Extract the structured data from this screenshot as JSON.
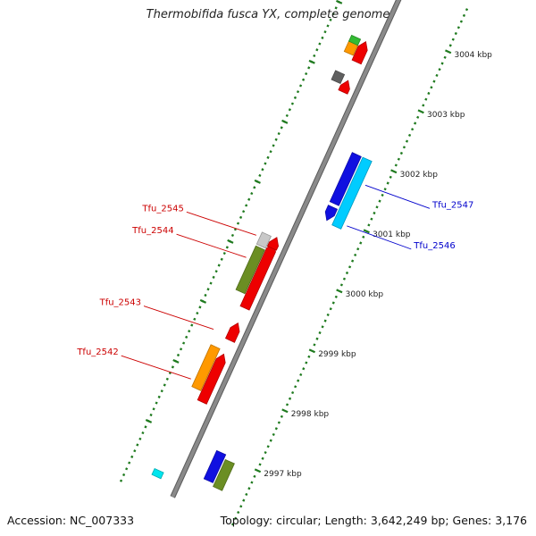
{
  "title": "Thermobifida fusca YX, complete genome",
  "footer": {
    "accession": "Accession: NC_007333",
    "summary": "Topology: circular; Length: 3,642,249 bp; Genes: 3,176"
  },
  "colors": {
    "backbone": "#8a8a8a",
    "tick_major": "#1f7a1f",
    "tick_minor": "#1f7a1f",
    "label_minus": "#cc0000",
    "label_plus": "#0000cc"
  },
  "ticks": [
    {
      "pos": 2997,
      "label": "2997 kbp"
    },
    {
      "pos": 2998,
      "label": "2998 kbp"
    },
    {
      "pos": 2999,
      "label": "2999 kbp"
    },
    {
      "pos": 3000,
      "label": "3000 kbp"
    },
    {
      "pos": 3001,
      "label": "3001 kbp"
    },
    {
      "pos": 3002,
      "label": "3002 kbp"
    },
    {
      "pos": 3003,
      "label": "3003 kbp"
    },
    {
      "pos": 3004,
      "label": "3004 kbp"
    }
  ],
  "features": [
    {
      "track": "o1",
      "start": 2996.55,
      "end": 2997.02,
      "color": "#1010e0",
      "dir": "none"
    },
    {
      "track": "o2",
      "start": 2996.5,
      "end": 2996.95,
      "color": "#6b8e23",
      "dir": "none"
    },
    {
      "track": "i1",
      "start": 2996.28,
      "end": 2996.38,
      "color": "#00e5ee",
      "dir": "none"
    },
    {
      "track": "i2",
      "start": 2997.6,
      "end": 2998.4,
      "color": "#ee0000",
      "dir": "fwd"
    },
    {
      "track": "i1",
      "start": 2997.75,
      "end": 2998.45,
      "color": "#ff9900",
      "dir": "none"
    },
    {
      "track": "i2",
      "start": 2998.63,
      "end": 2998.92,
      "color": "#ee0000",
      "dir": "fwd"
    },
    {
      "track": "i2",
      "start": 2999.17,
      "end": 3000.25,
      "color": "#ee0000",
      "dir": "fwd"
    },
    {
      "track": "i1",
      "start": 2999.37,
      "end": 3000.1,
      "color": "#6b8e23",
      "dir": "none"
    },
    {
      "track": "i1",
      "start": 3000.13,
      "end": 3000.33,
      "color": "#c8c8c8",
      "dir": "none"
    },
    {
      "track": "i2",
      "start": 3000.17,
      "end": 3000.35,
      "color": "#ee0000",
      "dir": "fwd"
    },
    {
      "track": "o1",
      "start": 3000.9,
      "end": 3001.12,
      "color": "#1010e0",
      "dir": "rev"
    },
    {
      "track": "o2",
      "start": 3000.87,
      "end": 3002.0,
      "color": "#00ccff",
      "dir": "none"
    },
    {
      "track": "o1",
      "start": 3001.18,
      "end": 3002.0,
      "color": "#1010e0",
      "dir": "none"
    },
    {
      "track": "i2",
      "start": 3002.78,
      "end": 3002.97,
      "color": "#ee0000",
      "dir": "fwd"
    },
    {
      "track": "i1",
      "start": 3002.88,
      "end": 3003.03,
      "color": "#606060",
      "dir": "none"
    },
    {
      "track": "i2",
      "start": 3003.28,
      "end": 3003.62,
      "color": "#ee0000",
      "dir": "fwd"
    },
    {
      "track": "i1",
      "start": 3003.35,
      "end": 3003.52,
      "color": "#ff9900",
      "dir": "none"
    },
    {
      "track": "i1",
      "start": 3003.52,
      "end": 3003.62,
      "color": "#33bb33",
      "dir": "none"
    }
  ],
  "gene_labels": [
    {
      "text": "Tfu_2542",
      "strand": "minus",
      "pos": 2997.85,
      "side": "left"
    },
    {
      "text": "Tfu_2543",
      "strand": "minus",
      "pos": 2998.68,
      "side": "left"
    },
    {
      "text": "Tfu_2544",
      "strand": "minus",
      "pos": 2999.88,
      "side": "left"
    },
    {
      "text": "Tfu_2545",
      "strand": "minus",
      "pos": 3000.25,
      "side": "left"
    },
    {
      "text": "Tfu_2546",
      "strand": "plus",
      "pos": 3000.95,
      "side": "right"
    },
    {
      "text": "Tfu_2547",
      "strand": "plus",
      "pos": 3001.63,
      "side": "right"
    }
  ]
}
